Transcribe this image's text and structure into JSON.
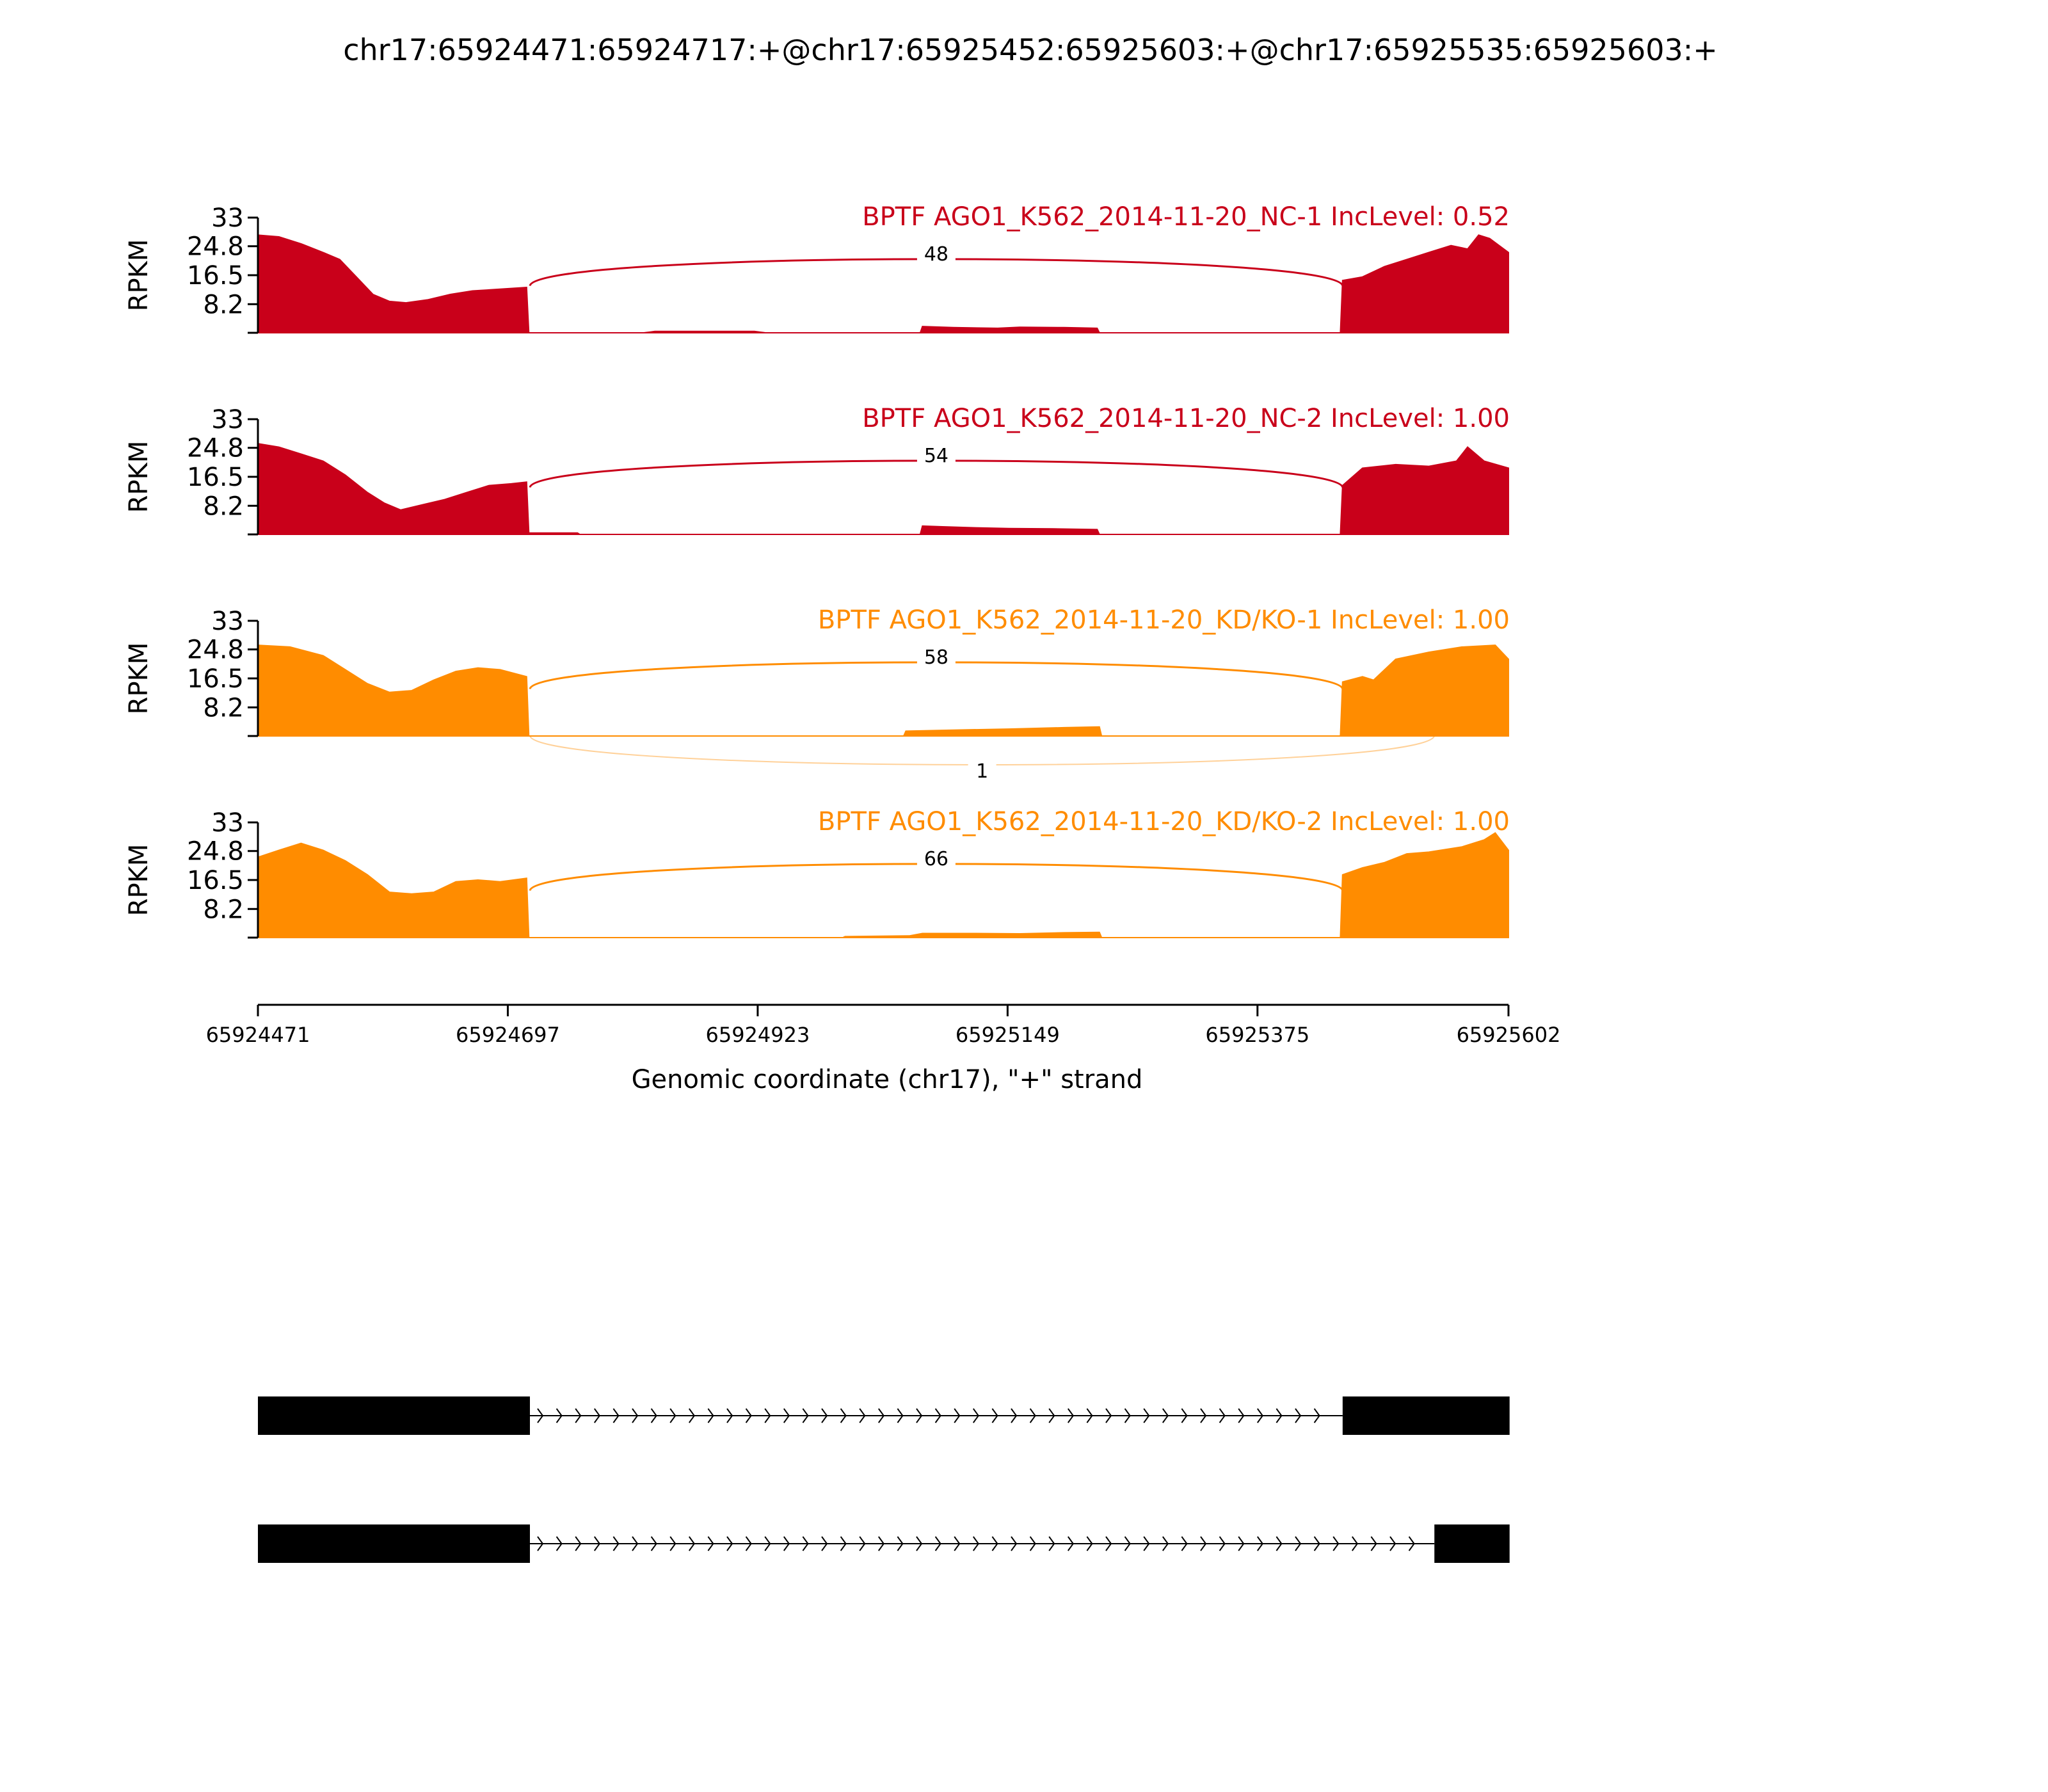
{
  "title": "chr17:65924471:65924717:+@chr17:65925452:65925603:+@chr17:65925535:65925603:+",
  "chart_data": {
    "type": "area",
    "title": "chr17:65924471:65924717:+@chr17:65925452:65925603:+@chr17:65925535:65925603:+",
    "xlabel": "Genomic coordinate (chr17), \"+\" strand",
    "ylabel": "RPKM",
    "xlim": [
      65924471,
      65925602
    ],
    "x_ticks": [
      "65924471",
      "65924697",
      "65924923",
      "65925149",
      "65925375",
      "65925602"
    ],
    "ylim": [
      0,
      33
    ],
    "y_ticks": [
      "8.2",
      "16.5",
      "24.8",
      "33"
    ],
    "grid": false,
    "tracks": [
      {
        "label": "BPTF AGO1_K562_2014-11-20_NC-1 IncLevel: 0.52",
        "color": "#c9001a",
        "coverage": [
          [
            65924471,
            28
          ],
          [
            65924490,
            27.5
          ],
          [
            65924510,
            25.5
          ],
          [
            65924530,
            23
          ],
          [
            65924545,
            21
          ],
          [
            65924560,
            16
          ],
          [
            65924575,
            11
          ],
          [
            65924590,
            9
          ],
          [
            65924605,
            8.6
          ],
          [
            65924625,
            9.5
          ],
          [
            65924645,
            11
          ],
          [
            65924665,
            12
          ],
          [
            65924690,
            12.5
          ],
          [
            65924714,
            13
          ],
          [
            65924716,
            0
          ],
          [
            65924820,
            0
          ],
          [
            65924830,
            0.4
          ],
          [
            65924920,
            0.4
          ],
          [
            65924930,
            0
          ],
          [
            65925070,
            0
          ],
          [
            65925072,
            1.8
          ],
          [
            65925100,
            1.5
          ],
          [
            65925140,
            1.3
          ],
          [
            65925160,
            1.6
          ],
          [
            65925200,
            1.5
          ],
          [
            65925230,
            1.3
          ],
          [
            65925232,
            0
          ],
          [
            65925450,
            0
          ],
          [
            65925452,
            15
          ],
          [
            65925470,
            16
          ],
          [
            65925490,
            19
          ],
          [
            65925510,
            21
          ],
          [
            65925530,
            23
          ],
          [
            65925550,
            25
          ],
          [
            65925565,
            24
          ],
          [
            65925575,
            28
          ],
          [
            65925585,
            27
          ],
          [
            65925602,
            23
          ]
        ],
        "junctions_above": [
          {
            "from": 65924717,
            "to": 65925452,
            "count": "48"
          }
        ],
        "junctions_below": []
      },
      {
        "label": "BPTF AGO1_K562_2014-11-20_NC-2 IncLevel: 1.00",
        "color": "#c9001a",
        "coverage": [
          [
            65924471,
            26
          ],
          [
            65924490,
            25
          ],
          [
            65924510,
            23
          ],
          [
            65924530,
            21
          ],
          [
            65924550,
            17
          ],
          [
            65924570,
            12
          ],
          [
            65924585,
            9
          ],
          [
            65924600,
            7
          ],
          [
            65924620,
            8.5
          ],
          [
            65924640,
            10
          ],
          [
            65924660,
            12
          ],
          [
            65924680,
            14
          ],
          [
            65924700,
            14.5
          ],
          [
            65924714,
            15
          ],
          [
            65924716,
            0.4
          ],
          [
            65924760,
            0.4
          ],
          [
            65924762,
            0
          ],
          [
            65925070,
            0
          ],
          [
            65925072,
            2.4
          ],
          [
            65925090,
            2.2
          ],
          [
            65925120,
            1.9
          ],
          [
            65925150,
            1.7
          ],
          [
            65925190,
            1.6
          ],
          [
            65925230,
            1.4
          ],
          [
            65925232,
            0
          ],
          [
            65925450,
            0
          ],
          [
            65925452,
            14
          ],
          [
            65925470,
            19
          ],
          [
            65925500,
            20
          ],
          [
            65925530,
            19.5
          ],
          [
            65925555,
            21
          ],
          [
            65925565,
            25
          ],
          [
            65925580,
            21
          ],
          [
            65925602,
            19
          ]
        ],
        "junctions_above": [
          {
            "from": 65924717,
            "to": 65925452,
            "count": "54"
          }
        ],
        "junctions_below": []
      },
      {
        "label": "BPTF AGO1_K562_2014-11-20_KD/KO-1 IncLevel: 1.00",
        "color": "#ff8c00",
        "coverage": [
          [
            65924471,
            26
          ],
          [
            65924500,
            25.5
          ],
          [
            65924530,
            23
          ],
          [
            65924550,
            19
          ],
          [
            65924570,
            15
          ],
          [
            65924590,
            12.5
          ],
          [
            65924610,
            13
          ],
          [
            65924630,
            16
          ],
          [
            65924650,
            18.5
          ],
          [
            65924670,
            19.5
          ],
          [
            65924690,
            19
          ],
          [
            65924714,
            17
          ],
          [
            65924716,
            0
          ],
          [
            65925055,
            0
          ],
          [
            65925057,
            1.4
          ],
          [
            65925100,
            1.7
          ],
          [
            65925150,
            2
          ],
          [
            65925200,
            2.4
          ],
          [
            65925232,
            2.6
          ],
          [
            65925234,
            0
          ],
          [
            65925450,
            0
          ],
          [
            65925452,
            15.5
          ],
          [
            65925470,
            17
          ],
          [
            65925480,
            16
          ],
          [
            65925500,
            22
          ],
          [
            65925530,
            24
          ],
          [
            65925560,
            25.5
          ],
          [
            65925590,
            26
          ],
          [
            65925602,
            22
          ]
        ],
        "junctions_above": [
          {
            "from": 65924717,
            "to": 65925452,
            "count": "58"
          }
        ],
        "junctions_below": [
          {
            "from": 65924717,
            "to": 65925535,
            "count": "1"
          }
        ]
      },
      {
        "label": "BPTF AGO1_K562_2014-11-20_KD/KO-2 IncLevel: 1.00",
        "color": "#ff8c00",
        "coverage": [
          [
            65924471,
            23
          ],
          [
            65924490,
            25
          ],
          [
            65924510,
            27
          ],
          [
            65924530,
            25
          ],
          [
            65924550,
            22
          ],
          [
            65924570,
            18
          ],
          [
            65924590,
            13
          ],
          [
            65924610,
            12.5
          ],
          [
            65924630,
            13
          ],
          [
            65924650,
            16
          ],
          [
            65924670,
            16.5
          ],
          [
            65924690,
            16
          ],
          [
            65924714,
            17
          ],
          [
            65924716,
            0
          ],
          [
            65925000,
            0
          ],
          [
            65925002,
            0.3
          ],
          [
            65925060,
            0.5
          ],
          [
            65925072,
            1.2
          ],
          [
            65925120,
            1.2
          ],
          [
            65925160,
            1.1
          ],
          [
            65925200,
            1.4
          ],
          [
            65925232,
            1.5
          ],
          [
            65925234,
            0
          ],
          [
            65925450,
            0
          ],
          [
            65925452,
            18
          ],
          [
            65925470,
            20
          ],
          [
            65925490,
            21.5
          ],
          [
            65925510,
            24
          ],
          [
            65925530,
            24.5
          ],
          [
            65925560,
            26
          ],
          [
            65925580,
            28
          ],
          [
            65925590,
            30
          ],
          [
            65925602,
            25
          ]
        ],
        "junctions_above": [
          {
            "from": 65924717,
            "to": 65925452,
            "count": "66"
          }
        ],
        "junctions_below": []
      }
    ],
    "isoforms": [
      {
        "exons": [
          [
            65924471,
            65924717
          ],
          [
            65925452,
            65925603
          ]
        ],
        "intron_arrows": ">"
      },
      {
        "exons": [
          [
            65924471,
            65924717
          ],
          [
            65925535,
            65925603
          ]
        ],
        "intron_arrows": ">"
      }
    ]
  }
}
